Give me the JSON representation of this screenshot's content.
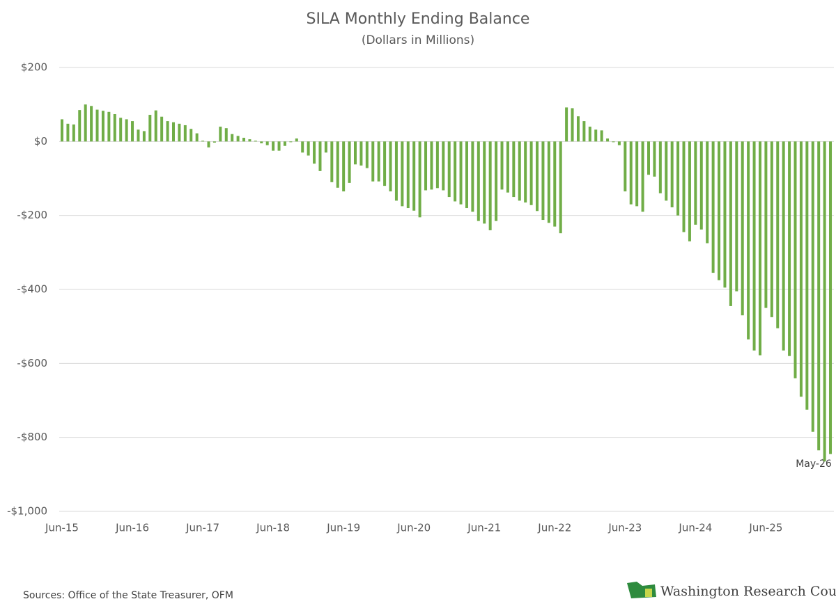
{
  "chart_data": {
    "type": "bar",
    "title": "SILA Monthly Ending Balance",
    "subtitle": "(Dollars in Millions)",
    "categories": [
      "Jun-15",
      null,
      null,
      null,
      null,
      null,
      null,
      null,
      null,
      null,
      null,
      null,
      "Jun-16",
      null,
      null,
      null,
      null,
      null,
      null,
      null,
      null,
      null,
      null,
      null,
      "Jun-17",
      null,
      null,
      null,
      null,
      null,
      null,
      null,
      null,
      null,
      null,
      null,
      "Jun-18",
      null,
      null,
      null,
      null,
      null,
      null,
      null,
      null,
      null,
      null,
      null,
      "Jun-19",
      null,
      null,
      null,
      null,
      null,
      null,
      null,
      null,
      null,
      null,
      null,
      "Jun-20",
      null,
      null,
      null,
      null,
      null,
      null,
      null,
      null,
      null,
      null,
      null,
      "Jun-21",
      null,
      null,
      null,
      null,
      null,
      null,
      null,
      null,
      null,
      null,
      null,
      "Jun-22",
      null,
      null,
      null,
      null,
      null,
      null,
      null,
      null,
      null,
      null,
      null,
      "Jun-23",
      null,
      null,
      null,
      null,
      null,
      null,
      null,
      null,
      null,
      null,
      null,
      "Jun-24",
      null,
      null,
      null,
      null,
      null,
      null,
      null,
      null,
      null,
      null,
      null,
      "Jun-25",
      null,
      null,
      null,
      null,
      null,
      null,
      null,
      null,
      null,
      null,
      null
    ],
    "values": [
      60,
      48,
      46,
      85,
      100,
      96,
      86,
      83,
      80,
      74,
      64,
      60,
      55,
      32,
      28,
      72,
      84,
      67,
      55,
      52,
      48,
      44,
      34,
      22,
      2,
      -16,
      -3,
      40,
      36,
      20,
      15,
      10,
      6,
      2,
      -5,
      -10,
      -25,
      -25,
      -12,
      -2,
      8,
      -30,
      -38,
      -60,
      -80,
      -30,
      -110,
      -125,
      -135,
      -112,
      -62,
      -65,
      -72,
      -108,
      -108,
      -120,
      -135,
      -160,
      -175,
      -180,
      -187,
      -205,
      -132,
      -130,
      -126,
      -132,
      -150,
      -162,
      -170,
      -180,
      -190,
      -215,
      -222,
      -240,
      -215,
      -130,
      -138,
      -150,
      -160,
      -165,
      -172,
      -188,
      -212,
      -220,
      -230,
      -248,
      92,
      90,
      68,
      55,
      40,
      32,
      30,
      8,
      -2,
      -10,
      -135,
      -170,
      -175,
      -190,
      -90,
      -95,
      -140,
      -160,
      -178,
      -200,
      -245,
      -270,
      -225,
      -238,
      -275,
      -355,
      -375,
      -395,
      -445,
      -405,
      -470,
      -535,
      -565,
      -578,
      -450,
      -475,
      -505,
      -565,
      -580,
      -640,
      -690,
      -725,
      -785,
      -835,
      -865,
      -845
    ],
    "color": "#70ad47",
    "ylim": [
      -1000,
      200
    ],
    "yticks": [
      {
        "value": -1000,
        "label": "-$1,000"
      },
      {
        "value": -800,
        "label": "-$800"
      },
      {
        "value": -600,
        "label": "-$600"
      },
      {
        "value": -400,
        "label": "-$400"
      },
      {
        "value": -200,
        "label": "-$200"
      },
      {
        "value": 0,
        "label": "$0"
      },
      {
        "value": 200,
        "label": "$200"
      }
    ],
    "grid": true,
    "annotation": "May-26",
    "source": "Sources: Office of the State Treasurer, OFM",
    "logo": "Washington Research Council"
  }
}
